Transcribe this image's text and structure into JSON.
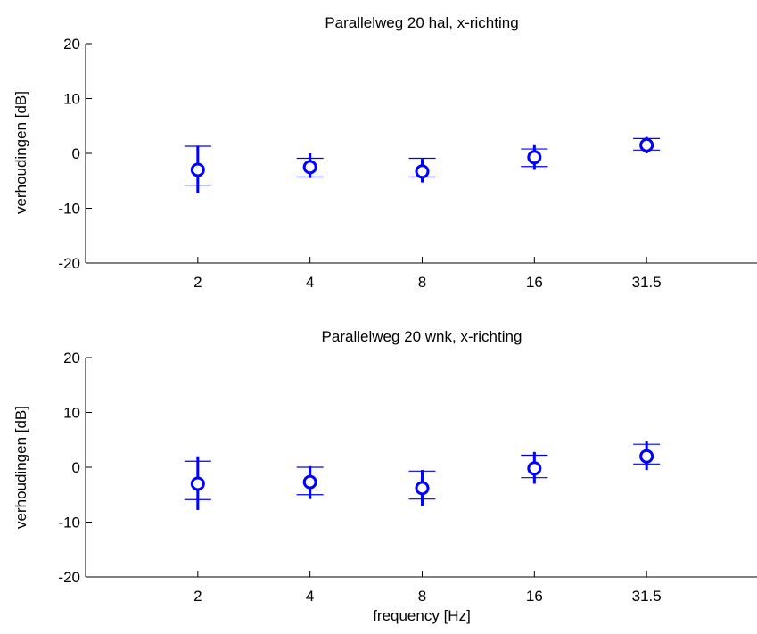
{
  "chart_data": [
    {
      "type": "scatter",
      "title": "Parallelweg 20 hal, x-richting",
      "xlabel": "",
      "ylabel": "verhoudingen [dB]",
      "categories": [
        "2",
        "4",
        "8",
        "16",
        "31.5"
      ],
      "ylim": [
        -20,
        20
      ],
      "yticks": [
        "20",
        "10",
        "0",
        "-10",
        "-20"
      ],
      "grid": false,
      "series": [
        {
          "mean": [
            -3.0,
            -2.5,
            -3.3,
            -0.7,
            1.5
          ],
          "whisker_low": [
            -7.3,
            -4.5,
            -5.3,
            -3.0,
            0.0
          ],
          "whisker_high": [
            1.4,
            0.0,
            -1.0,
            1.5,
            3.0
          ],
          "band_low": [
            -5.8,
            -4.3,
            -4.3,
            -2.4,
            0.6
          ],
          "band_high": [
            1.3,
            -0.9,
            -0.9,
            0.8,
            2.7
          ]
        }
      ]
    },
    {
      "type": "scatter",
      "title": "Parallelweg 20 wnk, x-richting",
      "xlabel": "frequency [Hz]",
      "ylabel": "verhoudingen [dB]",
      "categories": [
        "2",
        "4",
        "8",
        "16",
        "31.5"
      ],
      "ylim": [
        -20,
        20
      ],
      "yticks": [
        "20",
        "10",
        "0",
        "-10",
        "-20"
      ],
      "grid": false,
      "series": [
        {
          "mean": [
            -3.0,
            -2.7,
            -3.8,
            -0.2,
            2.0
          ],
          "whisker_low": [
            -7.8,
            -5.8,
            -7.0,
            -3.0,
            -0.5
          ],
          "whisker_high": [
            2.0,
            0.2,
            -0.5,
            2.8,
            4.7
          ],
          "band_low": [
            -5.9,
            -5.0,
            -5.8,
            -1.9,
            0.6
          ],
          "band_high": [
            1.1,
            0.0,
            -0.7,
            2.2,
            4.2
          ]
        }
      ]
    }
  ],
  "colors": {
    "marker": "#0000ff",
    "axis": "#000000"
  }
}
